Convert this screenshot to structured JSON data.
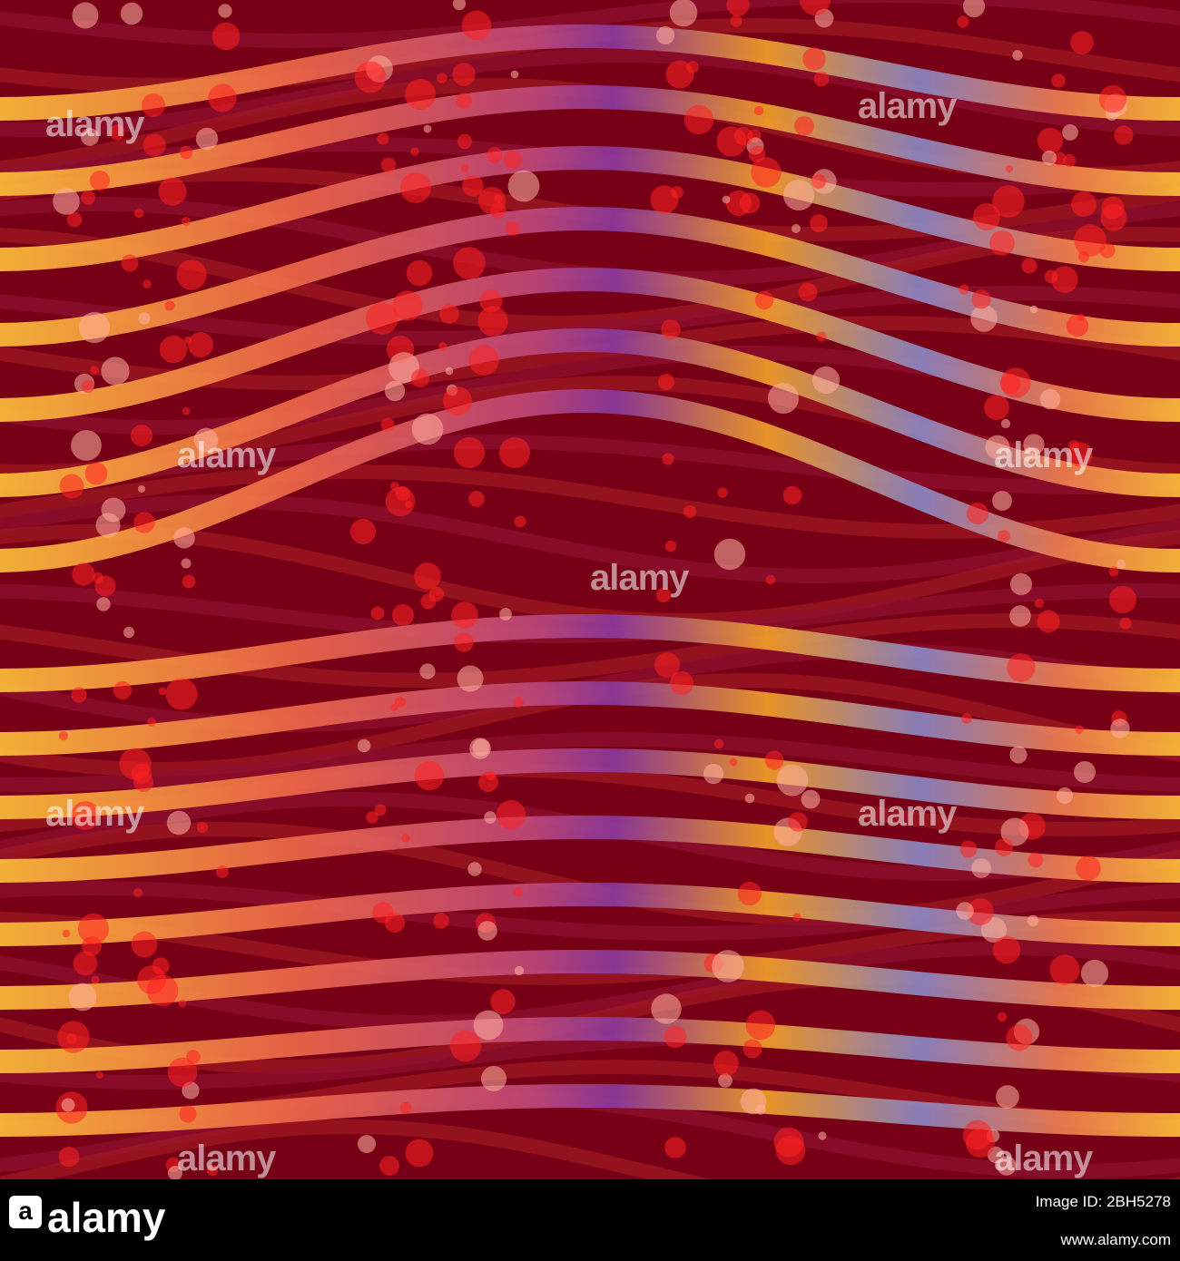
{
  "watermarks": [
    "alamy",
    "alamy",
    "alamy",
    "alamy",
    "alamy",
    "alamy",
    "alamy",
    "alamy",
    "alamy"
  ],
  "footer": {
    "logo": "a",
    "brand": "alamy",
    "image_id": "Image ID: 2BH5278",
    "url": "www.alamy.com"
  }
}
